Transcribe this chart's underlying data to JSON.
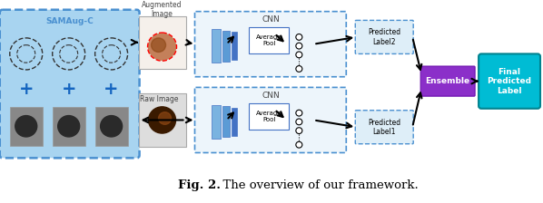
{
  "caption": "Fig. 2.  The overview of our framework.",
  "caption_bold_part": "Fig. 2.",
  "caption_normal_part": "  The overview of our framework.",
  "fig_bg": "#ffffff",
  "samaug_box_color": "#a8d4f0",
  "samaug_border_color": "#4a90d0",
  "samaug_label": "SAMAug-C",
  "cnn_box_color": "#e8f4fb",
  "cnn_border_color": "#4a90d0",
  "cnn_label_top": "CNN",
  "cnn_label_bot": "CNN",
  "aug_label": "Augmented\nImage",
  "raw_label": "Raw Image",
  "avgpool_label": "Average\nPool",
  "ensemble_label": "Ensemble",
  "ensemble_bg": "#8b2fc9",
  "ensemble_text_color": "#ffffff",
  "pred_label2": "Predicted\nLabel2",
  "pred_label1": "Predicted\nLabel1",
  "pred_box_border": "#4a90d0",
  "final_label": "Final\nPredicted\nLabel",
  "final_bg": "#00bcd4",
  "final_text_color": "#ffffff",
  "arrow_color": "#000000",
  "plus_color": "#1565c0",
  "cnn_layer_colors": [
    "#5b9bd5",
    "#5b9bd5",
    "#4472c4"
  ],
  "fc_node_color": "#000000"
}
